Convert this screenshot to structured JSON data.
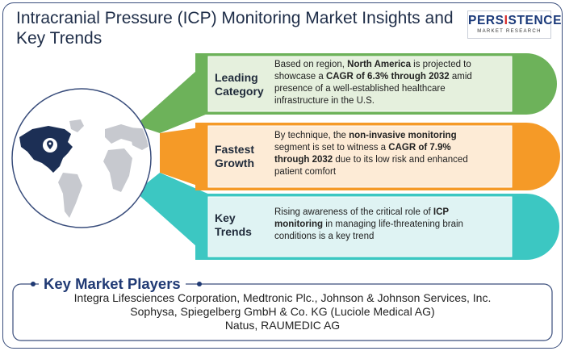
{
  "title": "Intracranial Pressure (ICP) Monitoring Market Insights and Key Trends",
  "logo": {
    "main_pre": "PERS",
    "main_accent": "I",
    "main_post": "STENCE",
    "sub": "MARKET RESEARCH"
  },
  "colors": {
    "border": "#3a4e7c",
    "leading": "#6db25a",
    "fastest": "#f59a27",
    "trends": "#3cc7c2",
    "map": "#1c2f55"
  },
  "icons": [
    "world-map-icon",
    "location-pin-icon"
  ],
  "cards": [
    {
      "category_line1": "Leading",
      "category_line2": "Category",
      "desc_line1_pre": "Based on region, ",
      "desc_line1_bold": "North America",
      "desc_line1_post": " is projected to",
      "desc_line2_pre": "showcase a ",
      "desc_line2_bold": "CAGR of 6.3% through 2032",
      "desc_line2_post": " amid",
      "desc_line3": "presence of a well-established healthcare",
      "desc_line4": "infrastructure in the U.S."
    },
    {
      "category_line1": "Fastest",
      "category_line2": "Growth",
      "desc_line1_pre": "By technique, the ",
      "desc_line1_bold": "non-invasive monitoring",
      "desc_line2_pre": "segment is set to witness a ",
      "desc_line2_bold": "CAGR of 7.9%",
      "desc_line3_bold": "through 2032",
      "desc_line3_post": " due to its low risk and enhanced",
      "desc_line4": "patient comfort"
    },
    {
      "category_line1": "Key",
      "category_line2": "Trends",
      "desc_line1_pre": "Rising awareness of the critical role of ",
      "desc_line1_bold": "ICP",
      "desc_line2_bold": "monitoring",
      "desc_line2_post": " in managing life-threatening brain",
      "desc_line3": "conditions is a key trend"
    }
  ],
  "players": {
    "title": "Key Market Players",
    "line1": "Integra Lifesciences Corporation, Medtronic Plc., Johnson & Johnson Services, Inc.",
    "line2": "Sophysa, Spiegelberg GmbH & Co. KG (Luciole Medical AG)",
    "line3": "Natus, RAUMEDIC AG"
  }
}
